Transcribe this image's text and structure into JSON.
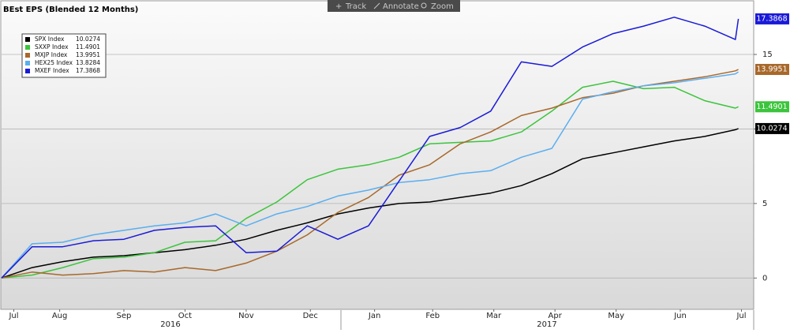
{
  "chart_data": {
    "type": "line",
    "title": "BEst EPS (Blended 12 Months)",
    "toolbar": [
      "Track",
      "Annotate",
      "Zoom"
    ],
    "x": [
      0,
      0.5,
      1,
      1.5,
      2,
      2.5,
      3,
      3.5,
      4,
      4.5,
      5,
      5.5,
      6,
      6.5,
      7,
      7.5,
      8,
      8.5,
      9,
      9.5,
      10,
      10.5,
      11,
      11.5,
      12,
      12.05
    ],
    "xlim": [
      0,
      12.3
    ],
    "xticks": [
      {
        "value": 0.2,
        "label": "Jul"
      },
      {
        "value": 0.95,
        "label": "Aug"
      },
      {
        "value": 2.0,
        "label": "Sep"
      },
      {
        "value": 3.0,
        "label": "Oct"
      },
      {
        "value": 4.0,
        "label": "Nov"
      },
      {
        "value": 5.05,
        "label": "Dec"
      },
      {
        "value": 6.1,
        "label": "Jan"
      },
      {
        "value": 7.05,
        "label": "Feb"
      },
      {
        "value": 8.05,
        "label": "Mar"
      },
      {
        "value": 9.05,
        "label": "Apr"
      },
      {
        "value": 10.05,
        "label": "May"
      },
      {
        "value": 11.1,
        "label": "Jun"
      },
      {
        "value": 12.1,
        "label": "Jul"
      }
    ],
    "years": [
      "2016",
      "2017"
    ],
    "ylim": [
      -2.1,
      18.6
    ],
    "yticks": [
      0,
      5,
      10,
      15
    ],
    "grid": true,
    "series": [
      {
        "name": "SPX Index",
        "color": "#000000",
        "value_box": true,
        "values": [
          0,
          0.7,
          1.1,
          1.4,
          1.5,
          1.7,
          1.9,
          2.2,
          2.6,
          3.2,
          3.7,
          4.3,
          4.7,
          5.0,
          5.1,
          5.4,
          5.7,
          6.2,
          7.0,
          8.0,
          8.4,
          8.8,
          9.2,
          9.5,
          9.95,
          10.0274
        ]
      },
      {
        "name": "SXXP Index",
        "color": "#3cc43c",
        "value_box": true,
        "values": [
          0,
          0.2,
          0.7,
          1.3,
          1.4,
          1.7,
          2.4,
          2.5,
          4.0,
          5.1,
          6.6,
          7.3,
          7.6,
          8.1,
          9.0,
          9.1,
          9.2,
          9.8,
          11.2,
          12.8,
          13.2,
          12.7,
          12.8,
          11.9,
          11.4,
          11.4901
        ]
      },
      {
        "name": "MXJP Index",
        "color": "#a8682a",
        "value_box": true,
        "values": [
          0,
          0.4,
          0.2,
          0.3,
          0.5,
          0.4,
          0.7,
          0.5,
          1.0,
          1.8,
          2.9,
          4.4,
          5.4,
          6.9,
          7.6,
          9.0,
          9.8,
          10.9,
          11.4,
          12.1,
          12.4,
          12.9,
          13.2,
          13.5,
          13.9,
          13.9951
        ]
      },
      {
        "name": "HEX25 Index",
        "color": "#5aaef0",
        "value_box": false,
        "values": [
          0,
          2.3,
          2.4,
          2.9,
          3.2,
          3.5,
          3.7,
          4.3,
          3.5,
          4.3,
          4.8,
          5.5,
          5.9,
          6.4,
          6.6,
          7.0,
          7.2,
          8.1,
          8.7,
          12.0,
          12.5,
          12.9,
          13.1,
          13.4,
          13.7,
          13.8284
        ]
      },
      {
        "name": "MXEF Index",
        "color": "#1a1ad8",
        "value_box": true,
        "values": [
          0,
          2.1,
          2.1,
          2.5,
          2.6,
          3.2,
          3.4,
          3.5,
          1.7,
          1.8,
          3.5,
          2.6,
          3.5,
          6.5,
          9.5,
          10.1,
          11.2,
          14.5,
          14.2,
          15.5,
          16.4,
          16.9,
          17.5,
          16.9,
          16.0,
          17.3868
        ]
      }
    ]
  }
}
